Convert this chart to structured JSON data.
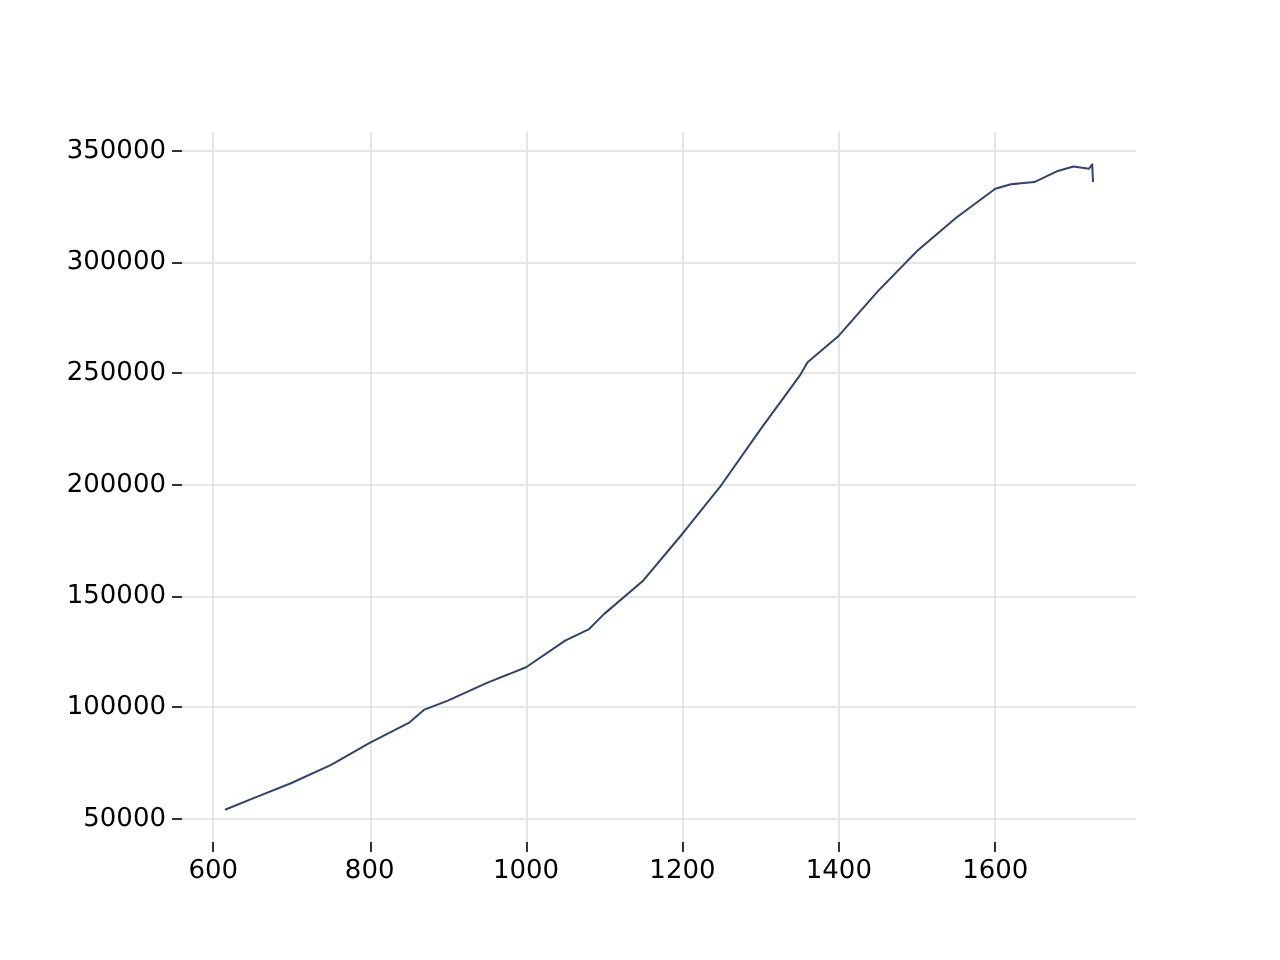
{
  "chart_data": {
    "type": "line",
    "x": [
      615,
      650,
      700,
      750,
      800,
      850,
      870,
      900,
      950,
      1000,
      1050,
      1080,
      1100,
      1150,
      1200,
      1250,
      1300,
      1350,
      1360,
      1400,
      1450,
      1500,
      1550,
      1600,
      1620,
      1650,
      1680,
      1700,
      1720,
      1724,
      1725
    ],
    "values": [
      54000,
      59000,
      66000,
      74000,
      84000,
      93000,
      99000,
      103000,
      111000,
      118000,
      130000,
      135000,
      142000,
      157000,
      178000,
      200000,
      225000,
      249000,
      255000,
      267000,
      287000,
      305000,
      320000,
      333000,
      335000,
      336000,
      341000,
      343000,
      342000,
      344000,
      336000
    ],
    "color": "#2b4570",
    "xlim": [
      560,
      1780
    ],
    "xticks": [
      600,
      800,
      1000,
      1200,
      1400,
      1600
    ],
    "ylim": [
      39500,
      358500
    ],
    "yticks": [
      50000,
      100000,
      150000,
      200000,
      250000,
      300000,
      350000
    ],
    "grid": true,
    "marker": "none",
    "line_style": "solid"
  }
}
